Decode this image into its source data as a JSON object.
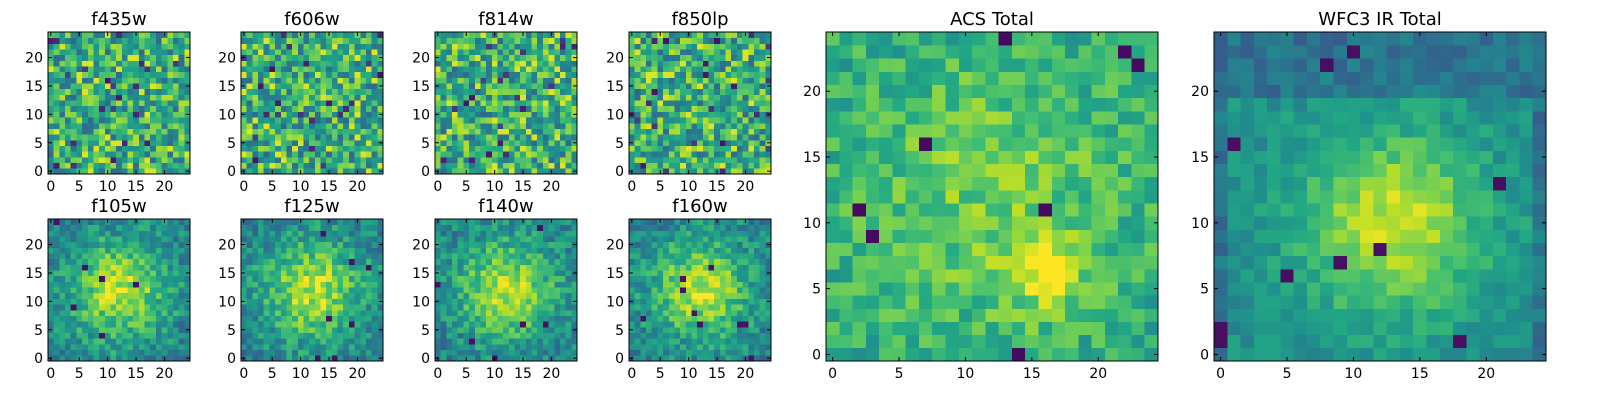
{
  "chart_data": {
    "type": "heatmap",
    "colormap": "viridis",
    "grid_size": 25,
    "panels": [
      {
        "title": "f435w",
        "xticks": [
          "0",
          "5",
          "10",
          "15",
          "20"
        ],
        "yticks": [
          "0",
          "5",
          "10",
          "15",
          "20"
        ],
        "xlim": [
          -0.5,
          24.5
        ],
        "ylim": [
          -0.5,
          24.5
        ],
        "origin": "lower",
        "pattern": "noise",
        "seed": 11
      },
      {
        "title": "f606w",
        "xticks": [
          "0",
          "5",
          "10",
          "15",
          "20"
        ],
        "yticks": [
          "0",
          "5",
          "10",
          "15",
          "20"
        ],
        "xlim": [
          -0.5,
          24.5
        ],
        "ylim": [
          -0.5,
          24.5
        ],
        "origin": "lower",
        "pattern": "noise",
        "seed": 23
      },
      {
        "title": "f814w",
        "xticks": [
          "0",
          "5",
          "10",
          "15",
          "20"
        ],
        "yticks": [
          "0",
          "5",
          "10",
          "15",
          "20"
        ],
        "xlim": [
          -0.5,
          24.5
        ],
        "ylim": [
          -0.5,
          24.5
        ],
        "origin": "lower",
        "pattern": "noise",
        "seed": 37
      },
      {
        "title": "f850lp",
        "xticks": [
          "0",
          "5",
          "10",
          "15",
          "20"
        ],
        "yticks": [
          "0",
          "5",
          "10",
          "15",
          "20"
        ],
        "xlim": [
          -0.5,
          24.5
        ],
        "ylim": [
          -0.5,
          24.5
        ],
        "origin": "lower",
        "pattern": "noise",
        "seed": 41
      },
      {
        "title": "f105w",
        "xticks": [
          "0",
          "5",
          "10",
          "15",
          "20"
        ],
        "yticks": [
          "0",
          "5",
          "10",
          "15",
          "20"
        ],
        "xlim": [
          -0.5,
          24.5
        ],
        "ylim": [
          -0.5,
          24.5
        ],
        "origin": "lower",
        "pattern": "blob",
        "seed": 53
      },
      {
        "title": "f125w",
        "xticks": [
          "0",
          "5",
          "10",
          "15",
          "20"
        ],
        "yticks": [
          "0",
          "5",
          "10",
          "15",
          "20"
        ],
        "xlim": [
          -0.5,
          24.5
        ],
        "ylim": [
          -0.5,
          24.5
        ],
        "origin": "lower",
        "pattern": "blob",
        "seed": 67
      },
      {
        "title": "f140w",
        "xticks": [
          "0",
          "5",
          "10",
          "15",
          "20"
        ],
        "yticks": [
          "0",
          "5",
          "10",
          "15",
          "20"
        ],
        "xlim": [
          -0.5,
          24.5
        ],
        "ylim": [
          -0.5,
          24.5
        ],
        "origin": "lower",
        "pattern": "blob",
        "seed": 79
      },
      {
        "title": "f160w",
        "xticks": [
          "0",
          "5",
          "10",
          "15",
          "20"
        ],
        "yticks": [
          "0",
          "5",
          "10",
          "15",
          "20"
        ],
        "xlim": [
          -0.5,
          24.5
        ],
        "ylim": [
          -0.5,
          24.5
        ],
        "origin": "lower",
        "pattern": "blob",
        "seed": 83
      },
      {
        "title": "ACS Total",
        "xticks": [
          "0",
          "5",
          "10",
          "15",
          "20"
        ],
        "yticks": [
          "0",
          "5",
          "10",
          "15",
          "20"
        ],
        "xlim": [
          -0.5,
          24.5
        ],
        "ylim": [
          -0.5,
          24.5
        ],
        "origin": "lower",
        "pattern": "acs",
        "seed": 97
      },
      {
        "title": "WFC3 IR Total",
        "xticks": [
          "0",
          "5",
          "10",
          "15",
          "20"
        ],
        "yticks": [
          "0",
          "5",
          "10",
          "15",
          "20"
        ],
        "xlim": [
          -0.5,
          24.5
        ],
        "ylim": [
          -0.5,
          24.5
        ],
        "origin": "lower",
        "pattern": "ir",
        "seed": 101
      }
    ]
  }
}
